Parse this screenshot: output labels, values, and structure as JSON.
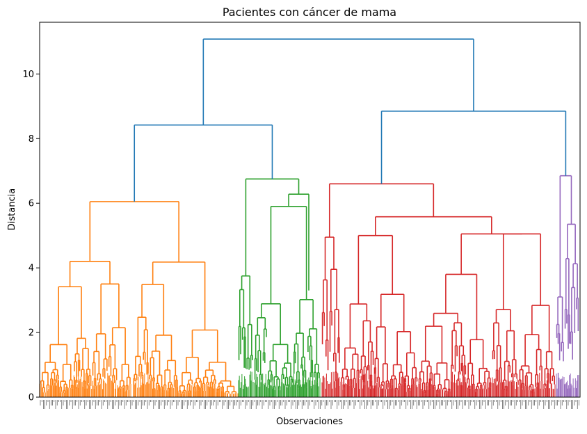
{
  "chart_data": {
    "type": "dendrogram",
    "title": "Pacientes con cáncer de mama",
    "xlabel": "Observaciones",
    "ylabel": "Distancia",
    "ylim": [
      0,
      11.6
    ],
    "yticks": [
      0,
      2,
      4,
      6,
      8,
      10
    ],
    "grid": false,
    "colors": {
      "root": "#1f77b4",
      "orange": "#ff7f0e",
      "green": "#2ca02c",
      "red": "#d62728",
      "purple": "#9467bd"
    },
    "clusters": [
      {
        "color_key": "orange",
        "merge_height": 6.05
      },
      {
        "color_key": "green",
        "merge_height": 6.75
      },
      {
        "color_key": "red",
        "merge_height": 6.6
      },
      {
        "color_key": "purple",
        "merge_height": 6.85
      }
    ],
    "top_merges": [
      {
        "children": [
          "orange",
          "green"
        ],
        "height": 8.42
      },
      {
        "children": [
          "red",
          "purple"
        ],
        "height": 8.85
      },
      {
        "children": [
          "orange+green",
          "red+purple"
        ],
        "height": 11.08
      }
    ]
  }
}
